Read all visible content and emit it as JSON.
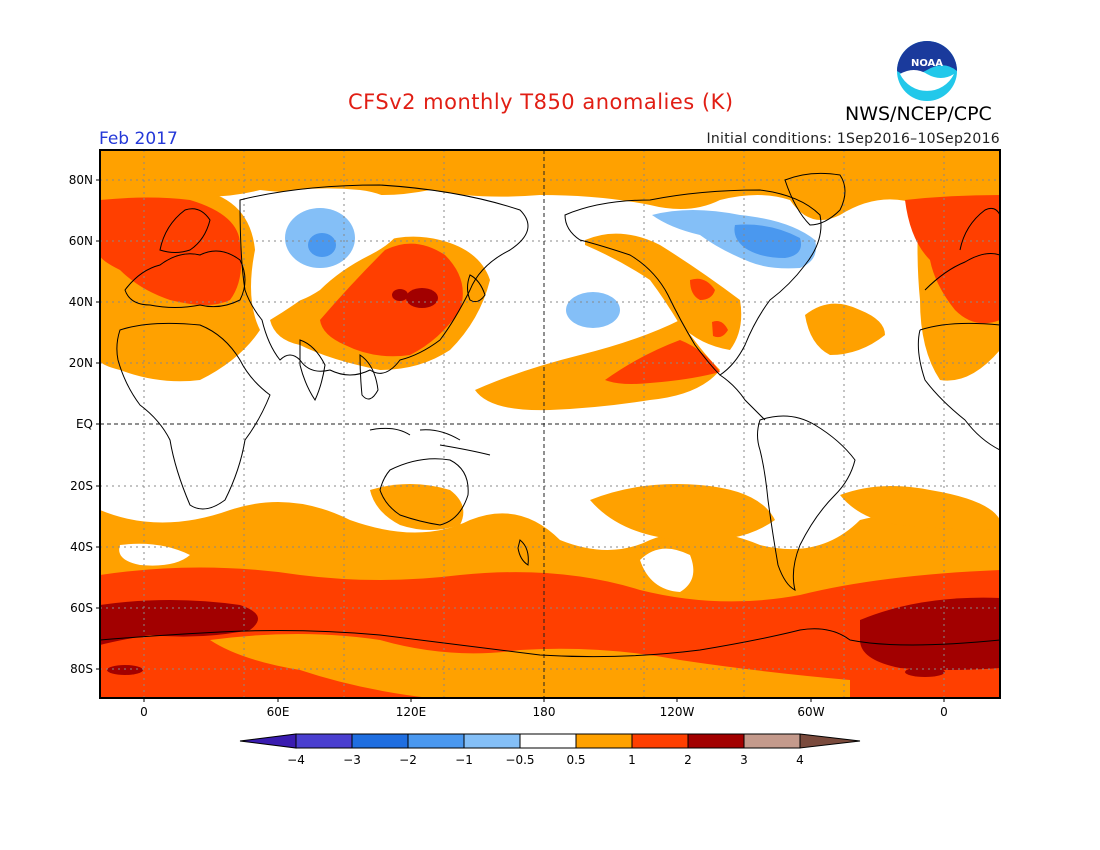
{
  "header": {
    "title": "CFSv2 monthly T850 anomalies (K)",
    "month": "Feb 2017",
    "initial_conditions": "Initial conditions: 1Sep2016–10Sep2016",
    "agency": "NWS/NCEP/CPC",
    "logo_text": "NOAA"
  },
  "axes": {
    "lat_labels": [
      "80N",
      "60N",
      "40N",
      "20N",
      "EQ",
      "20S",
      "40S",
      "60S",
      "80S"
    ],
    "lon_labels": [
      "0",
      "60E",
      "120E",
      "180",
      "120W",
      "60W",
      "0"
    ]
  },
  "colorbar": {
    "labels": [
      "−4",
      "−3",
      "−2",
      "−1",
      "−0.5",
      "0.5",
      "1",
      "2",
      "3",
      "4"
    ],
    "colors": [
      "#3a1cb0",
      "#4a3fd0",
      "#1f6ee0",
      "#4a98ef",
      "#84bff7",
      "#ffffff",
      "#ffa100",
      "#ff3f00",
      "#a20000",
      "#c49a8c",
      "#7a4a3c"
    ],
    "neg_end_color": "#3a1cb0",
    "pos_end_color": "#7a4a3c"
  },
  "map": {
    "projection": "cylindrical equidistant",
    "colors": {
      "bg_white": "#ffffff",
      "orange_0_5_1": "#ffa100",
      "red_1_2": "#ff3f00",
      "darkred_2_3": "#a20000",
      "blue_neg0_5_neg1": "#84bff7",
      "blue_neg1_neg2": "#4a98ef"
    }
  }
}
